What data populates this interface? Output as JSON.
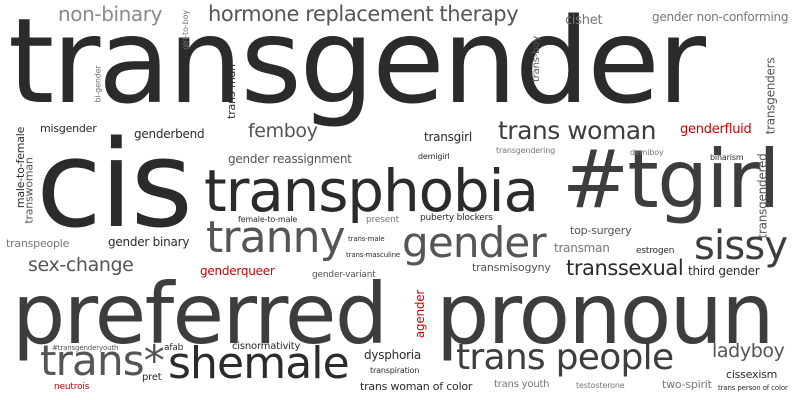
{
  "colors": {
    "dark": "#2b2b2b",
    "mid": "#3d3d3d",
    "gray": "#555555",
    "light": "#777777",
    "pale": "#8a8a8a",
    "red": "#cc0000"
  },
  "words": [
    {
      "text": "transgender",
      "color": "dark"
    },
    {
      "text": "cis",
      "color": "dark"
    },
    {
      "text": "preferred",
      "color": "mid"
    },
    {
      "text": "pronoun",
      "color": "mid"
    },
    {
      "text": "#tgirl",
      "color": "mid"
    },
    {
      "text": "transphobia",
      "color": "dark"
    },
    {
      "text": "tranny",
      "color": "gray"
    },
    {
      "text": "gender",
      "color": "gray"
    },
    {
      "text": "sissy",
      "color": "mid"
    },
    {
      "text": "shemale",
      "color": "dark"
    },
    {
      "text": "trans people",
      "color": "mid"
    },
    {
      "text": "trans*",
      "color": "gray"
    },
    {
      "text": "hormone replacement therapy",
      "color": "gray"
    },
    {
      "text": "non-binary",
      "color": "pale"
    },
    {
      "text": "trans woman",
      "color": "mid"
    },
    {
      "text": "transsexual",
      "color": "dark"
    },
    {
      "text": "sex-change",
      "color": "gray"
    },
    {
      "text": "femboy",
      "color": "gray"
    },
    {
      "text": "ladyboy",
      "color": "gray"
    },
    {
      "text": "gender non-conforming",
      "color": "light"
    },
    {
      "text": "cishet",
      "color": "light"
    },
    {
      "text": "genderfluid",
      "color": "red"
    },
    {
      "text": "genderqueer",
      "color": "red"
    },
    {
      "text": "agender",
      "color": "red"
    },
    {
      "text": "neutrois",
      "color": "red"
    },
    {
      "text": "gender reassignment",
      "color": "gray"
    },
    {
      "text": "genderbend",
      "color": "dark"
    },
    {
      "text": "misgender",
      "color": "dark"
    },
    {
      "text": "transgirl",
      "color": "dark"
    },
    {
      "text": "gender binary",
      "color": "dark"
    },
    {
      "text": "transpeople",
      "color": "light"
    },
    {
      "text": "transmisogyny",
      "color": "gray"
    },
    {
      "text": "third gender",
      "color": "dark"
    },
    {
      "text": "top-surgery",
      "color": "gray"
    },
    {
      "text": "transman",
      "color": "light"
    },
    {
      "text": "estrogen",
      "color": "dark"
    },
    {
      "text": "puberty blockers",
      "color": "dark"
    },
    {
      "text": "present",
      "color": "light"
    },
    {
      "text": "female-to-male",
      "color": "dark"
    },
    {
      "text": "demigirl",
      "color": "dark"
    },
    {
      "text": "transgendering",
      "color": "light"
    },
    {
      "text": "demiboy",
      "color": "light"
    },
    {
      "text": "binarism",
      "color": "dark"
    },
    {
      "text": "trans-male",
      "color": "dark"
    },
    {
      "text": "trans-masculine",
      "color": "dark"
    },
    {
      "text": "gender-variant",
      "color": "gray"
    },
    {
      "text": "cisnormativity",
      "color": "dark"
    },
    {
      "text": "dysphoria",
      "color": "dark"
    },
    {
      "text": "transpiration",
      "color": "dark"
    },
    {
      "text": "trans woman of color",
      "color": "dark"
    },
    {
      "text": "trans youth",
      "color": "light"
    },
    {
      "text": "testosterone",
      "color": "light"
    },
    {
      "text": "two-spirit",
      "color": "light"
    },
    {
      "text": "trans person of color",
      "color": "dark"
    },
    {
      "text": "cissexism",
      "color": "dark"
    },
    {
      "text": "afab",
      "color": "dark"
    },
    {
      "text": "pret",
      "color": "dark"
    },
    {
      "text": "#transgenderyouth",
      "color": "gray"
    },
    {
      "text": "male-to-female",
      "color": "dark"
    },
    {
      "text": "transwoman",
      "color": "gray"
    },
    {
      "text": "bi-gender",
      "color": "light"
    },
    {
      "text": "girl-to-boy",
      "color": "light"
    },
    {
      "text": "trans-man",
      "color": "dark"
    },
    {
      "text": "trans-boy",
      "color": "gray"
    },
    {
      "text": "transgenders",
      "color": "gray"
    },
    {
      "text": "transgendered",
      "color": "gray"
    }
  ]
}
